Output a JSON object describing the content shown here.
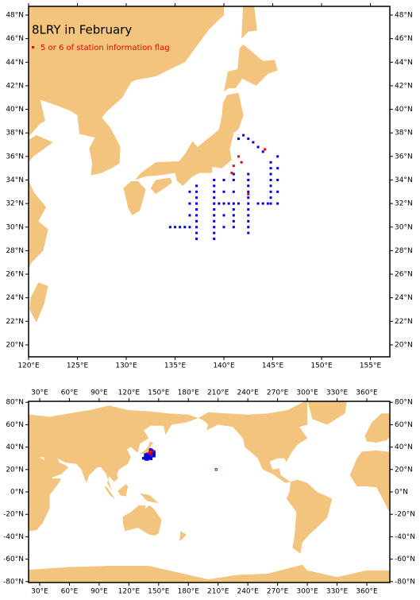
{
  "maps": [
    {
      "title": "8LRY in February",
      "xticks": [
        {
          "value": 120,
          "label": "120°E"
        },
        {
          "value": 125,
          "label": "125°E"
        },
        {
          "value": 130,
          "label": "130°E"
        },
        {
          "value": 135,
          "label": "135°E"
        },
        {
          "value": 140,
          "label": "140°E"
        },
        {
          "value": 145,
          "label": "145°E"
        },
        {
          "value": 150,
          "label": "150°E"
        },
        {
          "value": 155,
          "label": "155°E"
        }
      ],
      "yticks": [
        {
          "value": 20,
          "label": "20°N"
        },
        {
          "value": 22,
          "label": "22°N"
        },
        {
          "value": 24,
          "label": "24°N"
        },
        {
          "value": 26,
          "label": "26°N"
        },
        {
          "value": 28,
          "label": "28°N"
        },
        {
          "value": 30,
          "label": "30°N"
        },
        {
          "value": 32,
          "label": "32°N"
        },
        {
          "value": 34,
          "label": "34°N"
        },
        {
          "value": 36,
          "label": "36°N"
        },
        {
          "value": 38,
          "label": "38°N"
        },
        {
          "value": 40,
          "label": "40°N"
        },
        {
          "value": 42,
          "label": "42°N"
        },
        {
          "value": 44,
          "label": "44°N"
        },
        {
          "value": 46,
          "label": "46°N"
        },
        {
          "value": 48,
          "label": "48°N"
        }
      ]
    },
    {
      "xticks": [
        {
          "value": 30,
          "label": "30°E"
        },
        {
          "value": 60,
          "label": "60°E"
        },
        {
          "value": 90,
          "label": "90°E"
        },
        {
          "value": 120,
          "label": "120°E"
        },
        {
          "value": 150,
          "label": "150°E"
        },
        {
          "value": 180,
          "label": "180°E"
        },
        {
          "value": 210,
          "label": "210°E"
        },
        {
          "value": 240,
          "label": "240°E"
        },
        {
          "value": 270,
          "label": "270°E"
        },
        {
          "value": 300,
          "label": "300°E"
        },
        {
          "value": 330,
          "label": "330°E"
        },
        {
          "value": 360,
          "label": "360°E"
        }
      ],
      "yticks": [
        {
          "value": -80,
          "label": "-80°N"
        },
        {
          "value": -60,
          "label": "-60°N"
        },
        {
          "value": -40,
          "label": "-40°N"
        },
        {
          "value": -20,
          "label": "-20°N"
        },
        {
          "value": 0,
          "label": "0°N"
        },
        {
          "value": 20,
          "label": "20°N"
        },
        {
          "value": 40,
          "label": "40°N"
        },
        {
          "value": 60,
          "label": "60°N"
        },
        {
          "value": 80,
          "label": "80°N"
        }
      ]
    }
  ],
  "stations": {
    "color": "#0000dd",
    "lon": [
      136.5,
      136.5,
      136.5,
      136.5,
      137.2,
      137.2,
      137.2,
      137.2,
      137.2,
      137.2,
      137.2,
      137.2,
      137.2,
      137.2,
      139,
      139,
      139,
      139,
      139,
      139,
      139,
      139,
      139,
      139,
      139,
      140,
      140,
      140,
      140,
      140,
      141,
      141,
      141,
      141,
      141,
      141,
      141,
      141,
      142.5,
      142.5,
      142.5,
      142.5,
      142.5,
      142.5,
      142.5,
      142.5,
      142.5,
      142.5,
      142.5,
      144.8,
      144.8,
      144.8,
      144.8,
      144.8,
      144.8,
      144.8,
      144.8,
      145.5,
      145.5,
      145.5,
      145.5,
      145.5,
      134.5,
      135,
      135.5,
      136,
      139.5,
      140.5,
      141.5,
      141.5,
      142,
      142.5,
      143,
      143.5,
      144,
      143.5,
      144,
      144.5,
      208
    ],
    "lat": [
      30,
      31,
      32,
      33,
      29,
      29.5,
      30,
      30.5,
      31,
      31.5,
      32,
      32.5,
      33,
      33.5,
      29,
      29.5,
      30,
      30.5,
      31,
      31.5,
      32,
      32.5,
      33,
      33.5,
      34,
      30,
      31,
      32,
      33,
      34,
      30,
      30.5,
      31,
      31.5,
      32,
      33,
      34,
      34.5,
      29.5,
      30,
      30.5,
      31,
      31.5,
      32,
      32.5,
      33,
      33.5,
      34,
      34.5,
      32,
      32.5,
      33,
      33.5,
      34,
      34.5,
      35,
      35.5,
      32,
      33,
      34,
      35,
      36,
      30,
      30,
      30,
      30,
      32,
      32,
      32,
      37.5,
      37.8,
      37.5,
      37.2,
      36.8,
      36.4,
      32,
      32,
      32,
      20
    ]
  },
  "flagged": {
    "name": "5 or 6 of station information flag",
    "color": "#ee0000",
    "lon": [
      141.5,
      141.8,
      141,
      144.2,
      142.5,
      140.8
    ],
    "lat": [
      36,
      35.5,
      35.2,
      36.6,
      32.8,
      34.6
    ]
  }
}
